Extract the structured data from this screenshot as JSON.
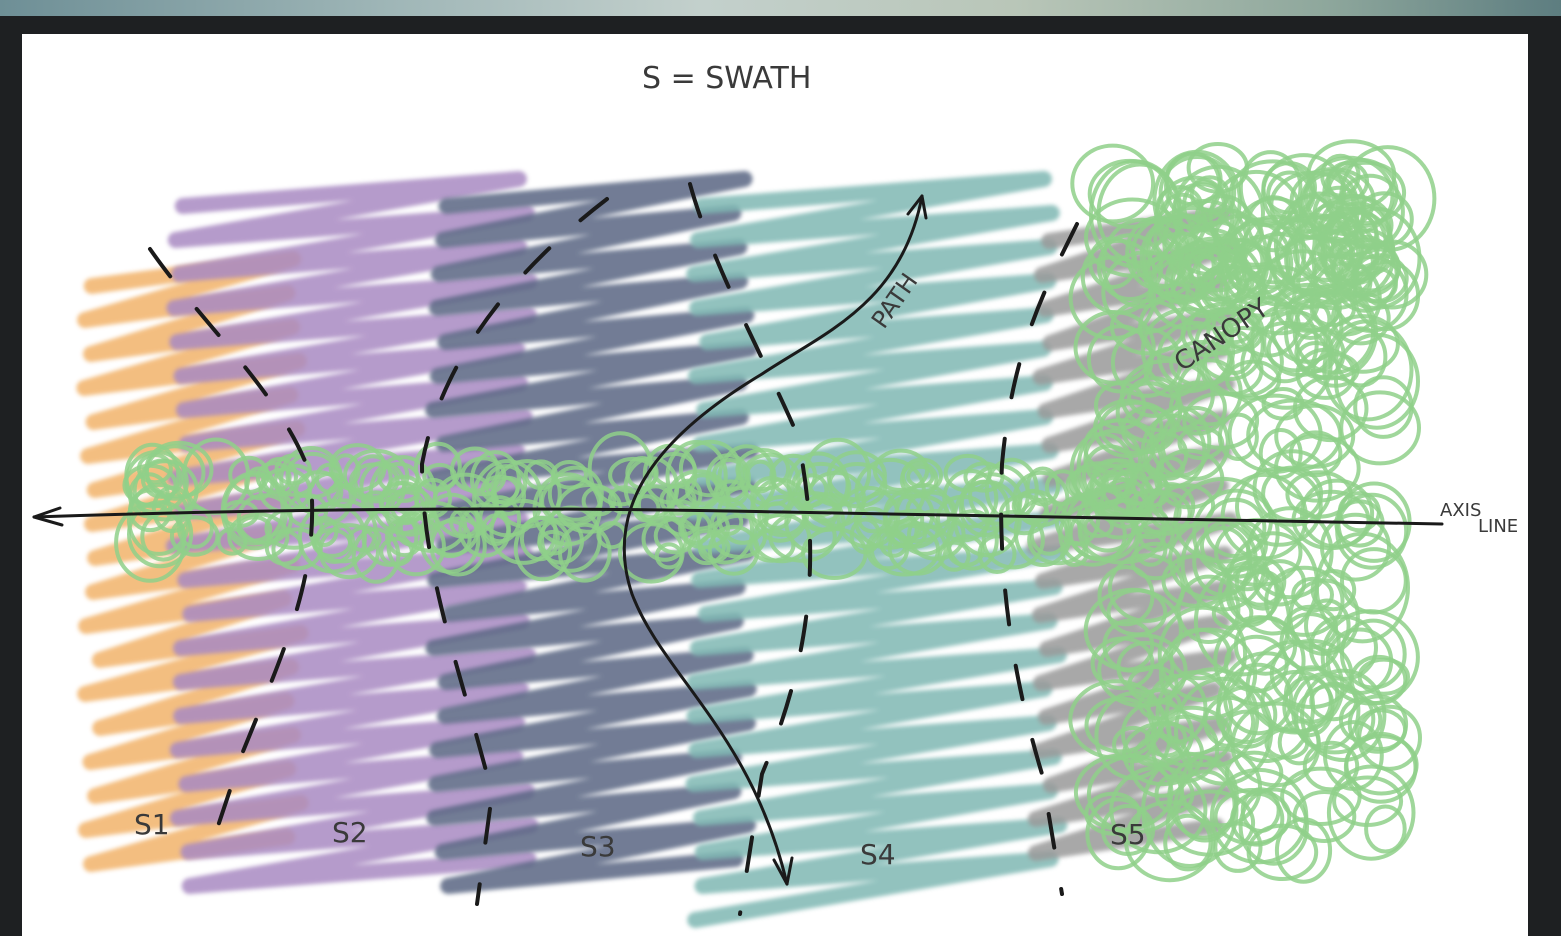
{
  "title": "S = SWATH",
  "swaths": [
    {
      "label": "S1",
      "color": "#f2b36a"
    },
    {
      "label": "S2",
      "color": "#a98ac2"
    },
    {
      "label": "S3",
      "color": "#5a6683"
    },
    {
      "label": "S4",
      "color": "#7fb8b3"
    },
    {
      "label": "S5",
      "color": "#9a9a9a"
    }
  ],
  "annotations": {
    "path": "PATH",
    "canopy": "CANOPY",
    "axis_line_1": "AXIS",
    "axis_line_2": "LINE"
  },
  "colors": {
    "canopy": "#8fd08a",
    "ink": "#1a1a1a",
    "background": "#ffffff"
  }
}
